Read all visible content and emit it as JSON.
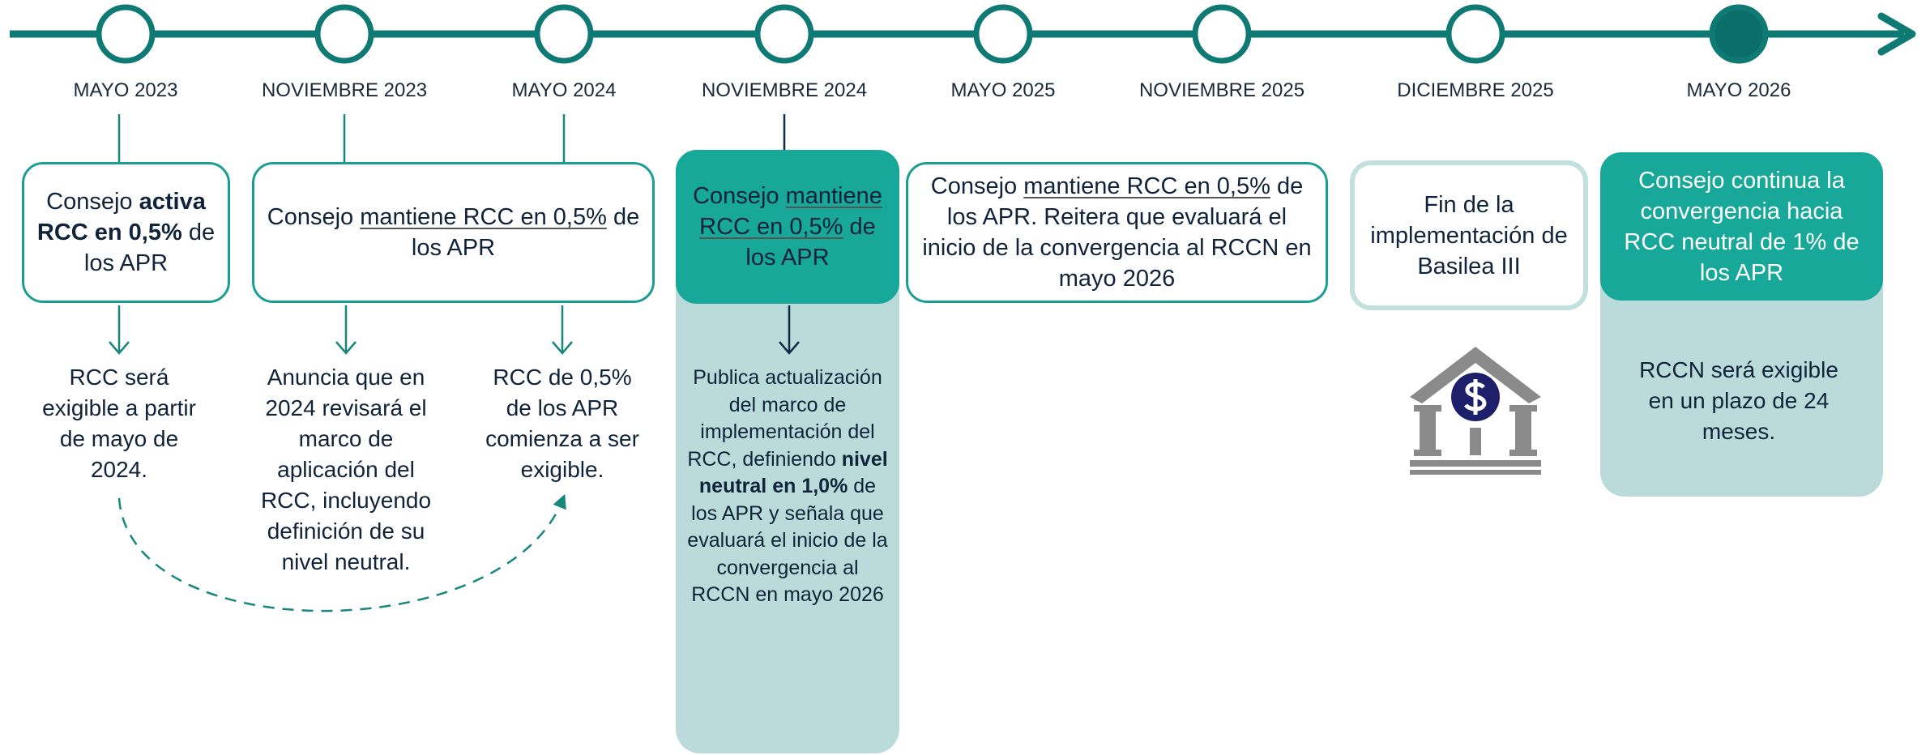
{
  "milestones": [
    "MAYO 2023",
    "NOVIEMBRE 2023",
    "MAYO 2024",
    "NOVIEMBRE 2024",
    "MAYO 2025",
    "NOVIEMBRE 2025",
    "DICIEMBRE 2025",
    "MAYO 2026"
  ],
  "boxes": [
    [
      "Consejo ",
      {
        "text": "activa RCC en 0,5%",
        "style": "bold"
      },
      " de los APR"
    ],
    [
      "Consejo ",
      {
        "text": "mantiene RCC en 0,5%",
        "style": "underline"
      },
      " de los APR"
    ],
    [
      "Consejo ",
      {
        "text": "mantiene RCC en 0,5%",
        "style": "underline"
      },
      " de los APR"
    ],
    [
      "Consejo ",
      {
        "text": "mantiene RCC en 0,5%",
        "style": "underline"
      },
      " de los APR. Reitera que evaluará el inicio de la convergencia al RCCN en mayo 2026"
    ],
    [
      "Fin de la implementación de Basilea III"
    ],
    [
      "Consejo continua la convergencia hacia RCC neutral de 1% de los APR"
    ]
  ],
  "notes": [
    [
      "RCC será exigible a partir de mayo de 2024."
    ],
    [
      "Anuncia que en 2024 revisará el marco de aplicación del RCC, incluyendo definición de su nivel neutral."
    ],
    [
      "RCC de 0,5% de los APR comienza a ser exigible."
    ],
    [
      "Publica actualización del marco de implementación del RCC, definiendo ",
      {
        "text": "nivel neutral en 1,0%",
        "style": "bold"
      },
      " de los APR y señala que evaluará el inicio de la convergencia al RCCN en mayo 2026"
    ],
    [
      "RCCN será exigible en un plazo de 24 meses."
    ]
  ]
}
